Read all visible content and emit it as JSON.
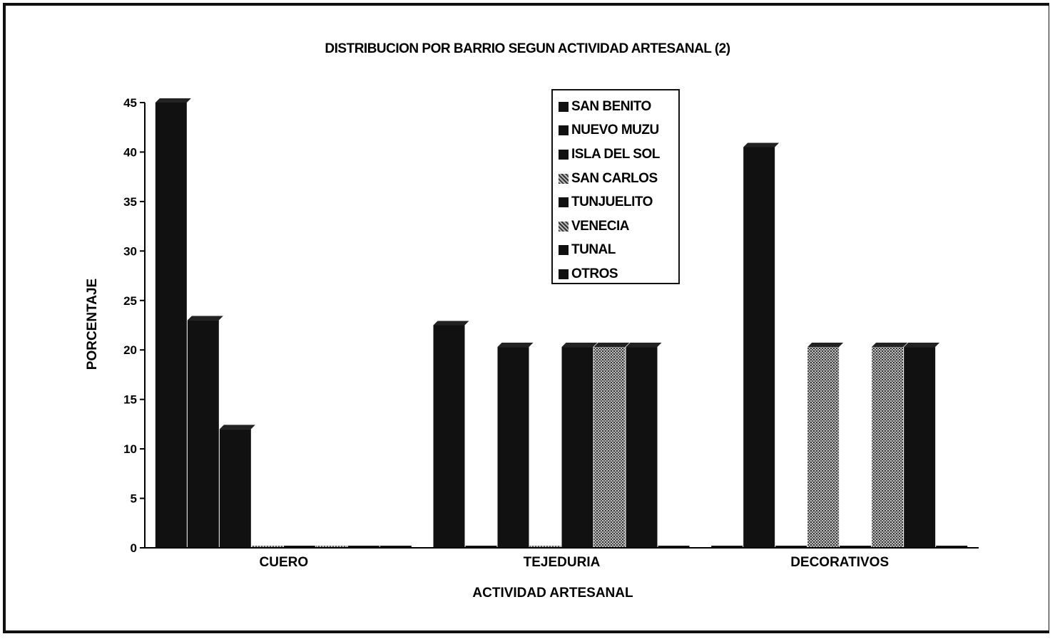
{
  "colors": {
    "bar": "#111111",
    "hatched": "#9a9a9a"
  },
  "chart_data": {
    "type": "bar",
    "title": "DISTRIBUCION POR BARRIO SEGUN ACTIVIDAD ARTESANAL (2)",
    "xlabel": "ACTIVIDAD ARTESANAL",
    "ylabel": "PORCENTAJE",
    "ylim": [
      0,
      45
    ],
    "yticks": [
      "0",
      "5",
      "10",
      "15",
      "20",
      "25",
      "30",
      "35",
      "40",
      "45"
    ],
    "categories": [
      "CUERO",
      "TEJEDURIA",
      "DECORATIVOS"
    ],
    "legend_position": "top-center",
    "series": [
      {
        "name": "SAN BENITO",
        "values": [
          45,
          22.5,
          0
        ],
        "pattern": "solid"
      },
      {
        "name": "NUEVO MUZU",
        "values": [
          23,
          0,
          40.5
        ],
        "pattern": "solid"
      },
      {
        "name": "ISLA DEL SOL",
        "values": [
          12,
          20.3,
          0
        ],
        "pattern": "solid"
      },
      {
        "name": "SAN CARLOS",
        "values": [
          0,
          0,
          20.3
        ],
        "pattern": "hatched"
      },
      {
        "name": "TUNJUELITO",
        "values": [
          0,
          20.3,
          0
        ],
        "pattern": "solid"
      },
      {
        "name": "VENECIA",
        "values": [
          0,
          20.3,
          20.3
        ],
        "pattern": "hatched"
      },
      {
        "name": "TUNAL",
        "values": [
          0,
          20.3,
          20.3
        ],
        "pattern": "solid"
      },
      {
        "name": "OTROS",
        "values": [
          0,
          0,
          0
        ],
        "pattern": "solid"
      }
    ]
  }
}
